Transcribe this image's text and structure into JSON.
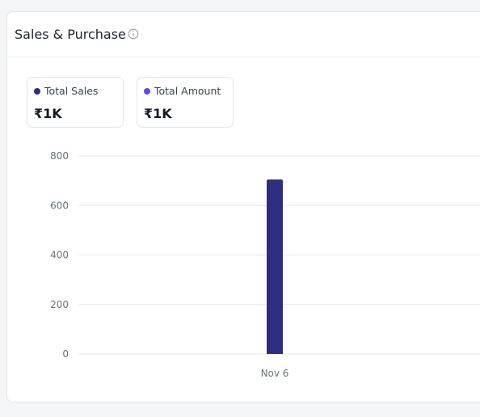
{
  "card": {
    "title": "Sales & Purchase",
    "info_icon": "info-icon"
  },
  "stats": [
    {
      "label": "Total Sales",
      "value": "₹1K",
      "color": "#2e2d7f"
    },
    {
      "label": "Total Amount",
      "value": "₹1K",
      "color": "#5b4fe0"
    }
  ],
  "chart_data": {
    "type": "bar",
    "categories": [
      "Nov 6"
    ],
    "series": [
      {
        "values": [
          705
        ],
        "color": "#2e2d7f"
      }
    ],
    "ylim": [
      0,
      800
    ],
    "yticks": [
      0,
      200,
      400,
      600,
      800
    ],
    "grid": true,
    "xlabel": "",
    "ylabel": ""
  }
}
